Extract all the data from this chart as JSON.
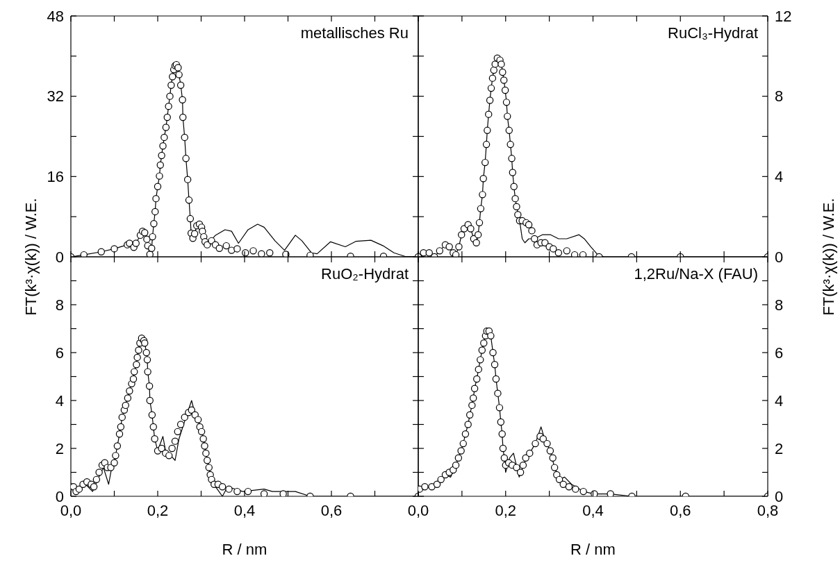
{
  "chart_data": [
    {
      "type": "scatter",
      "title": "metallisches Ru",
      "ylabel": "FT(k³·χ(k)) / W.E.",
      "xlim": [
        0,
        0.8
      ],
      "xticks": [
        0,
        0.1,
        0.2,
        0.3,
        0.4,
        0.5,
        0.6,
        0.7,
        0.8
      ],
      "ylim": [
        0,
        48
      ],
      "yticks": [
        0,
        {
          "value": 8,
          "label": null
        },
        16,
        {
          "value": 24,
          "label": null
        },
        32,
        {
          "value": 40,
          "label": null
        },
        48
      ],
      "tick_labels": "y",
      "series": [
        {
          "type": "line",
          "color": "#000000",
          "x": [
            0,
            0.03,
            0.07,
            0.1,
            0.13,
            0.135,
            0.145,
            0.15,
            0.16,
            0.165,
            0.17,
            0.175,
            0.177,
            0.182,
            0.186,
            0.188,
            0.191,
            0.194,
            0.196,
            0.2,
            0.204,
            0.206,
            0.209,
            0.212,
            0.215,
            0.219,
            0.222,
            0.225,
            0.228,
            0.231,
            0.234,
            0.237,
            0.24,
            0.243,
            0.247,
            0.249,
            0.253,
            0.257,
            0.258,
            0.262,
            0.265,
            0.269,
            0.272,
            0.275,
            0.277,
            0.281,
            0.285,
            0.29,
            0.296,
            0.301,
            0.303,
            0.306,
            0.309,
            0.314,
            0.333,
            0.355,
            0.37,
            0.386,
            0.408,
            0.43,
            0.445,
            0.47,
            0.492,
            0.517,
            0.532,
            0.554,
            0.567,
            0.598,
            0.632,
            0.657,
            0.691,
            0.719,
            0.744,
            0.769,
            0.8
          ],
          "values": [
            0,
            0.4,
            1.0,
            1.6,
            2.4,
            2.7,
            1.9,
            2.7,
            4.3,
            5.1,
            4.8,
            3.5,
            2.2,
            0.5,
            1.7,
            4.0,
            6.6,
            9.0,
            11.6,
            14.0,
            16.1,
            18.3,
            20.2,
            22.1,
            23.8,
            25.8,
            27.8,
            30.0,
            32.0,
            34.2,
            35.9,
            37.3,
            38.1,
            38.3,
            37.7,
            36.3,
            34.2,
            31.3,
            27.8,
            23.8,
            19.6,
            15.4,
            11.3,
            7.6,
            4.7,
            3.7,
            4.6,
            6.2,
            6.5,
            5.9,
            5.1,
            4.0,
            3.0,
            2.4,
            4.3,
            5.4,
            5.1,
            2.7,
            5.4,
            6.5,
            5.9,
            3.2,
            1.3,
            4.3,
            3.2,
            0.8,
            0.6,
            3.0,
            2.0,
            3.1,
            3.3,
            2.2,
            0.8,
            0.1,
            0
          ]
        },
        {
          "marker": "circle",
          "color": "#000000",
          "x": [
            0,
            0.03,
            0.07,
            0.1,
            0.13,
            0.135,
            0.145,
            0.15,
            0.16,
            0.165,
            0.17,
            0.175,
            0.177,
            0.182,
            0.186,
            0.188,
            0.191,
            0.194,
            0.196,
            0.2,
            0.204,
            0.206,
            0.209,
            0.212,
            0.215,
            0.219,
            0.222,
            0.225,
            0.228,
            0.231,
            0.234,
            0.237,
            0.24,
            0.243,
            0.247,
            0.249,
            0.253,
            0.257,
            0.258,
            0.262,
            0.265,
            0.269,
            0.272,
            0.275,
            0.277,
            0.281,
            0.285,
            0.29,
            0.296,
            0.301,
            0.303,
            0.306,
            0.309,
            0.314,
            0.324,
            0.333,
            0.342,
            0.358,
            0.37,
            0.383,
            0.402,
            0.42,
            0.439,
            0.458,
            0.495,
            0.551,
            0.644,
            0.72,
            0.8
          ],
          "values": [
            0,
            0.4,
            1.0,
            1.6,
            2.4,
            2.7,
            1.9,
            2.7,
            4.3,
            5.1,
            4.8,
            3.5,
            2.2,
            0.5,
            1.7,
            4.0,
            6.6,
            9.0,
            11.6,
            14.0,
            16.1,
            18.3,
            20.2,
            22.1,
            23.8,
            25.8,
            27.8,
            30.0,
            32.0,
            34.2,
            35.9,
            37.3,
            38.1,
            38.3,
            37.7,
            36.3,
            34.2,
            31.3,
            27.8,
            23.8,
            19.6,
            15.4,
            11.3,
            7.6,
            4.7,
            3.7,
            4.6,
            6.2,
            6.5,
            5.9,
            5.1,
            4.0,
            3.0,
            2.4,
            3.2,
            2.4,
            1.7,
            2.2,
            1.3,
            1.6,
            0.8,
            1.2,
            0.6,
            0.8,
            0.5,
            0.3,
            0.1,
            0.1,
            0
          ]
        }
      ]
    },
    {
      "type": "scatter",
      "title": "RuCl₃-Hydrat",
      "ylabel": "FT(k³·χ(k)) / W.E.",
      "xlim": [
        0,
        0.8
      ],
      "xticks": [
        0,
        0.1,
        0.2,
        0.3,
        0.4,
        0.5,
        0.6,
        0.7,
        0.8
      ],
      "ylim": [
        0,
        12
      ],
      "yticks": [
        0,
        {
          "value": 2,
          "label": null
        },
        4,
        {
          "value": 6,
          "label": null
        },
        8,
        {
          "value": 10,
          "label": null
        },
        12
      ],
      "tick_labels": "y",
      "series": [
        {
          "type": "line",
          "color": "#000000",
          "x": [
            0,
            0.012,
            0.025,
            0.037,
            0.049,
            0.062,
            0.071,
            0.08,
            0.086,
            0.093,
            0.099,
            0.105,
            0.114,
            0.12,
            0.127,
            0.133,
            0.137,
            0.14,
            0.143,
            0.147,
            0.149,
            0.153,
            0.156,
            0.158,
            0.161,
            0.164,
            0.167,
            0.17,
            0.173,
            0.176,
            0.181,
            0.187,
            0.19,
            0.193,
            0.196,
            0.199,
            0.202,
            0.204,
            0.208,
            0.211,
            0.214,
            0.216,
            0.219,
            0.222,
            0.225,
            0.232,
            0.238,
            0.244,
            0.253,
            0.266,
            0.284,
            0.303,
            0.321,
            0.34,
            0.368,
            0.38,
            0.395,
            0.411,
            0.426,
            0.8
          ],
          "values": [
            0,
            0.2,
            0.2,
            0,
            0.3,
            0.6,
            0.5,
            0.2,
            0.1,
            0.5,
            1.1,
            1.4,
            1.6,
            1.4,
            0.9,
            0.7,
            1.1,
            1.7,
            2.4,
            3.1,
            3.9,
            4.7,
            5.6,
            6.3,
            7.1,
            7.8,
            8.4,
            8.9,
            9.3,
            9.6,
            9.9,
            9.8,
            9.6,
            9.2,
            8.8,
            8.3,
            7.7,
            7.0,
            6.3,
            5.6,
            4.9,
            4.2,
            3.5,
            2.9,
            2.5,
            1.8,
            0.9,
            0.7,
            0.9,
            0.9,
            1.1,
            1.1,
            0.9,
            0.9,
            1.1,
            0.9,
            0.5,
            0.1,
            0,
            0
          ]
        },
        {
          "marker": "circle",
          "color": "#000000",
          "x": [
            0,
            0.012,
            0.025,
            0.037,
            0.049,
            0.062,
            0.071,
            0.08,
            0.086,
            0.093,
            0.099,
            0.105,
            0.114,
            0.12,
            0.127,
            0.133,
            0.137,
            0.14,
            0.143,
            0.147,
            0.149,
            0.153,
            0.156,
            0.158,
            0.161,
            0.164,
            0.167,
            0.17,
            0.173,
            0.176,
            0.181,
            0.187,
            0.19,
            0.193,
            0.196,
            0.199,
            0.202,
            0.204,
            0.208,
            0.211,
            0.214,
            0.216,
            0.219,
            0.222,
            0.225,
            0.228,
            0.232,
            0.238,
            0.247,
            0.253,
            0.26,
            0.266,
            0.272,
            0.281,
            0.29,
            0.3,
            0.309,
            0.321,
            0.34,
            0.358,
            0.377,
            0.414,
            0.488,
            0.6,
            0.8
          ],
          "values": [
            0,
            0.2,
            0.2,
            0,
            0.3,
            0.6,
            0.5,
            0.2,
            0.1,
            0.5,
            1.1,
            1.4,
            1.6,
            1.4,
            0.9,
            0.7,
            1.1,
            1.7,
            2.4,
            3.1,
            3.9,
            4.7,
            5.6,
            6.3,
            7.1,
            7.8,
            8.4,
            8.9,
            9.3,
            9.6,
            9.9,
            9.8,
            9.6,
            9.2,
            8.8,
            8.3,
            7.7,
            7.0,
            6.3,
            5.6,
            4.9,
            4.2,
            3.5,
            2.9,
            2.5,
            2.1,
            1.8,
            1.8,
            1.7,
            1.6,
            1.3,
            0.9,
            0.6,
            0.7,
            0.7,
            0.5,
            0.4,
            0.2,
            0.3,
            0.1,
            0.1,
            0,
            0,
            0,
            0
          ]
        }
      ]
    },
    {
      "type": "scatter",
      "title": "RuO₂-Hydrat",
      "xlabel": "R / nm",
      "xlim": [
        0,
        0.8
      ],
      "xticks": [
        {
          "value": 0,
          "label": "0,0"
        },
        {
          "value": 0.1,
          "label": null
        },
        {
          "value": 0.2,
          "label": "0,2"
        },
        {
          "value": 0.3,
          "label": null
        },
        {
          "value": 0.4,
          "label": "0,4"
        },
        {
          "value": 0.5,
          "label": null
        },
        {
          "value": 0.6,
          "label": "0,6"
        },
        {
          "value": 0.7,
          "label": null
        },
        {
          "value": 0.8,
          "label": null
        }
      ],
      "ylim": [
        0,
        10
      ],
      "yticks": [
        0,
        {
          "value": 1,
          "label": null
        },
        2,
        {
          "value": 3,
          "label": null
        },
        4,
        {
          "value": 5,
          "label": null
        },
        6,
        {
          "value": 7,
          "label": null
        },
        8,
        {
          "value": 9,
          "label": null
        }
      ],
      "series": [
        {
          "type": "line",
          "color": "#000000",
          "x": [
            0,
            0.016,
            0.034,
            0.05,
            0.062,
            0.075,
            0.087,
            0.093,
            0.1,
            0.103,
            0.107,
            0.112,
            0.115,
            0.118,
            0.123,
            0.126,
            0.131,
            0.135,
            0.14,
            0.144,
            0.146,
            0.151,
            0.153,
            0.156,
            0.159,
            0.163,
            0.168,
            0.17,
            0.174,
            0.176,
            0.177,
            0.181,
            0.182,
            0.187,
            0.19,
            0.193,
            0.2,
            0.212,
            0.218,
            0.23,
            0.24,
            0.249,
            0.265,
            0.278,
            0.285,
            0.293,
            0.297,
            0.301,
            0.305,
            0.308,
            0.311,
            0.314,
            0.318,
            0.321,
            0.324,
            0.333,
            0.349,
            0.361,
            0.396,
            0.445,
            0.464,
            0.495,
            0.517,
            0.551,
            0.8
          ],
          "values": [
            0.4,
            0.3,
            0.5,
            0.2,
            0.7,
            1.2,
            0.5,
            1.1,
            1.4,
            1.7,
            2.1,
            2.6,
            2.9,
            3.3,
            3.6,
            3.8,
            4.1,
            4.4,
            4.7,
            4.9,
            5.2,
            5.5,
            5.8,
            6.1,
            6.4,
            6.6,
            6.5,
            6.4,
            6.0,
            5.7,
            5.2,
            4.6,
            4.0,
            3.4,
            2.9,
            2.4,
            1.9,
            2.5,
            1.9,
            1.7,
            1.5,
            2.4,
            3.3,
            4.0,
            3.5,
            3.2,
            2.9,
            2.7,
            2.4,
            2.1,
            1.8,
            1.5,
            1.2,
            0.9,
            0.7,
            0.4,
            0,
            0.4,
            0.2,
            0.3,
            0.2,
            0.2,
            0.2,
            0,
            0
          ]
        },
        {
          "marker": "circle",
          "color": "#000000",
          "x": [
            0,
            0.006,
            0.012,
            0.019,
            0.028,
            0.037,
            0.047,
            0.053,
            0.059,
            0.065,
            0.072,
            0.078,
            0.084,
            0.092,
            0.1,
            0.103,
            0.107,
            0.112,
            0.115,
            0.118,
            0.123,
            0.126,
            0.131,
            0.135,
            0.14,
            0.144,
            0.146,
            0.151,
            0.153,
            0.156,
            0.159,
            0.163,
            0.168,
            0.17,
            0.174,
            0.176,
            0.177,
            0.181,
            0.182,
            0.187,
            0.19,
            0.193,
            0.2,
            0.209,
            0.218,
            0.226,
            0.233,
            0.24,
            0.246,
            0.253,
            0.262,
            0.271,
            0.278,
            0.286,
            0.293,
            0.297,
            0.301,
            0.305,
            0.308,
            0.311,
            0.314,
            0.318,
            0.321,
            0.324,
            0.33,
            0.339,
            0.349,
            0.364,
            0.383,
            0.408,
            0.445,
            0.489,
            0.551,
            0.644,
            0.8
          ],
          "values": [
            0.4,
            0.4,
            0.2,
            0.3,
            0.5,
            0.6,
            0.5,
            0.4,
            0.7,
            1.0,
            1.3,
            1.4,
            1.2,
            1.2,
            1.4,
            1.7,
            2.1,
            2.6,
            2.9,
            3.3,
            3.6,
            3.8,
            4.1,
            4.4,
            4.7,
            4.9,
            5.2,
            5.5,
            5.8,
            6.1,
            6.4,
            6.6,
            6.5,
            6.4,
            6.0,
            5.7,
            5.2,
            4.6,
            4.0,
            3.4,
            2.9,
            2.4,
            1.9,
            2.0,
            1.8,
            1.7,
            2.0,
            2.3,
            2.7,
            3.0,
            3.3,
            3.5,
            3.6,
            3.4,
            3.2,
            2.9,
            2.7,
            2.4,
            2.1,
            1.8,
            1.5,
            1.2,
            0.9,
            0.7,
            0.5,
            0.5,
            0.4,
            0.3,
            0.2,
            0.2,
            0.1,
            0.1,
            0,
            0,
            0
          ]
        }
      ]
    },
    {
      "type": "scatter",
      "title": "1,2Ru/Na-X (FAU)",
      "xlabel": "R / nm",
      "xlim": [
        0,
        0.8
      ],
      "xticks": [
        {
          "value": 0,
          "label": "0,0"
        },
        {
          "value": 0.1,
          "label": null
        },
        {
          "value": 0.2,
          "label": "0,2"
        },
        {
          "value": 0.3,
          "label": null
        },
        {
          "value": 0.4,
          "label": "0,4"
        },
        {
          "value": 0.5,
          "label": null
        },
        {
          "value": 0.6,
          "label": "0,6"
        },
        {
          "value": 0.7,
          "label": null
        },
        {
          "value": 0.8,
          "label": "0,8"
        }
      ],
      "ylim": [
        0,
        10
      ],
      "yticks": [
        0,
        {
          "value": 1,
          "label": null
        },
        2,
        {
          "value": 3,
          "label": null
        },
        4,
        {
          "value": 5,
          "label": null
        },
        6,
        {
          "value": 7,
          "label": null
        },
        8,
        {
          "value": 9,
          "label": null
        }
      ],
      "series": [
        {
          "type": "line",
          "color": "#000000",
          "x": [
            0.003,
            0.031,
            0.052,
            0.062,
            0.074,
            0.086,
            0.092,
            0.098,
            0.103,
            0.108,
            0.114,
            0.118,
            0.123,
            0.126,
            0.129,
            0.134,
            0.138,
            0.142,
            0.146,
            0.15,
            0.154,
            0.157,
            0.162,
            0.166,
            0.171,
            0.175,
            0.178,
            0.182,
            0.186,
            0.189,
            0.192,
            0.194,
            0.197,
            0.2,
            0.209,
            0.218,
            0.231,
            0.243,
            0.255,
            0.268,
            0.281,
            0.289,
            0.302,
            0.312,
            0.323,
            0.335,
            0.351,
            0.378,
            0.403,
            0.44,
            0.489,
            0.8
          ],
          "values": [
            0.3,
            0.4,
            0.7,
            0.9,
            0.8,
            1.3,
            1.6,
            1.9,
            2.2,
            2.6,
            3.0,
            3.4,
            3.8,
            4.1,
            4.5,
            4.9,
            5.3,
            5.7,
            6.1,
            6.4,
            6.7,
            6.9,
            6.9,
            6.7,
            6.0,
            5.5,
            4.9,
            4.3,
            3.7,
            3.1,
            2.6,
            2.0,
            1.6,
            1.0,
            1.6,
            1.8,
            0.8,
            1.4,
            1.8,
            2.2,
            2.9,
            2.4,
            1.9,
            1.2,
            0.7,
            0.8,
            0.5,
            0.2,
            0.1,
            0.1,
            0,
            0
          ]
        },
        {
          "marker": "circle",
          "color": "#000000",
          "x": [
            0.003,
            0.015,
            0.031,
            0.043,
            0.052,
            0.062,
            0.071,
            0.08,
            0.086,
            0.092,
            0.098,
            0.103,
            0.108,
            0.114,
            0.118,
            0.123,
            0.126,
            0.129,
            0.134,
            0.138,
            0.142,
            0.146,
            0.15,
            0.154,
            0.157,
            0.162,
            0.166,
            0.171,
            0.175,
            0.178,
            0.182,
            0.186,
            0.189,
            0.192,
            0.194,
            0.197,
            0.2,
            0.207,
            0.215,
            0.225,
            0.234,
            0.24,
            0.246,
            0.255,
            0.268,
            0.279,
            0.286,
            0.295,
            0.302,
            0.308,
            0.312,
            0.317,
            0.323,
            0.332,
            0.345,
            0.36,
            0.378,
            0.403,
            0.44,
            0.489,
            0.612,
            0.8
          ],
          "values": [
            0.3,
            0.4,
            0.4,
            0.5,
            0.7,
            0.9,
            1.0,
            1.1,
            1.3,
            1.6,
            1.9,
            2.2,
            2.6,
            3.0,
            3.4,
            3.8,
            4.1,
            4.5,
            4.9,
            5.3,
            5.7,
            6.1,
            6.4,
            6.7,
            6.9,
            6.9,
            6.7,
            6.0,
            5.5,
            4.9,
            4.3,
            3.7,
            3.1,
            2.6,
            2.0,
            1.6,
            1.3,
            1.4,
            1.3,
            1.2,
            1.0,
            1.3,
            1.6,
            1.8,
            2.2,
            2.5,
            2.4,
            2.2,
            1.9,
            1.6,
            1.2,
            0.9,
            0.7,
            0.5,
            0.4,
            0.3,
            0.2,
            0.1,
            0.1,
            0,
            0,
            0
          ]
        }
      ]
    }
  ]
}
